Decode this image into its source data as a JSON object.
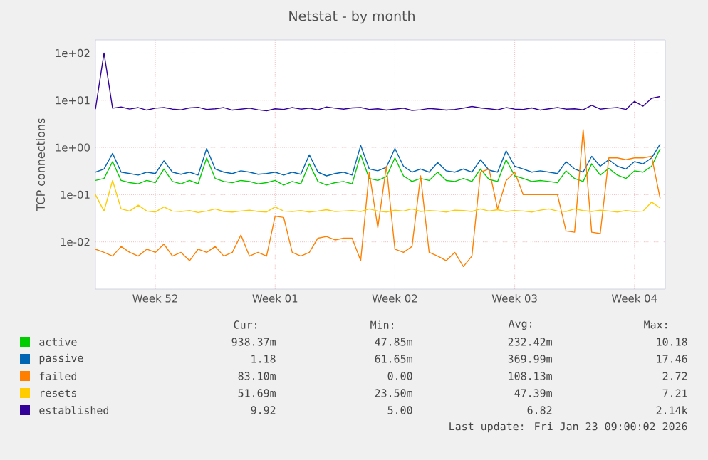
{
  "chart_data": {
    "type": "line",
    "title": "Netstat - by month",
    "ylabel": "TCP connections",
    "log": "y",
    "grid": true,
    "legend": "bottom",
    "marker": "none",
    "line_style": "solid",
    "categories": [
      null,
      null,
      null,
      null,
      null,
      null,
      null,
      "Week 52",
      null,
      null,
      null,
      null,
      null,
      null,
      null,
      null,
      null,
      null,
      null,
      null,
      null,
      "Week 01",
      null,
      null,
      null,
      null,
      null,
      null,
      null,
      null,
      null,
      null,
      null,
      null,
      null,
      "Week 02",
      null,
      null,
      null,
      null,
      null,
      null,
      null,
      null,
      null,
      null,
      null,
      null,
      null,
      "Week 03",
      null,
      null,
      null,
      null,
      null,
      null,
      null,
      null,
      null,
      null,
      null,
      null,
      null,
      "Week 04",
      null,
      null,
      null
    ],
    "ylim": [
      0.001,
      190
    ],
    "yticks": [
      {
        "value": 0.01,
        "label": "1e-02"
      },
      {
        "value": 0.1,
        "label": "1e-01"
      },
      {
        "value": 1,
        "label": "1e+00"
      },
      {
        "value": 10,
        "label": "1e+01"
      },
      {
        "value": 100,
        "label": "1e+02"
      }
    ],
    "series": [
      {
        "name": "active",
        "color": "#00cc00",
        "values": [
          0.2,
          0.22,
          0.5,
          0.2,
          0.18,
          0.17,
          0.2,
          0.18,
          0.35,
          0.19,
          0.17,
          0.2,
          0.17,
          0.6,
          0.22,
          0.19,
          0.18,
          0.2,
          0.19,
          0.17,
          0.18,
          0.2,
          0.16,
          0.19,
          0.17,
          0.45,
          0.19,
          0.16,
          0.18,
          0.19,
          0.17,
          0.7,
          0.22,
          0.2,
          0.24,
          0.6,
          0.25,
          0.19,
          0.22,
          0.2,
          0.3,
          0.2,
          0.19,
          0.22,
          0.19,
          0.35,
          0.21,
          0.19,
          0.55,
          0.25,
          0.22,
          0.19,
          0.2,
          0.19,
          0.18,
          0.32,
          0.22,
          0.19,
          0.45,
          0.26,
          0.36,
          0.26,
          0.22,
          0.32,
          0.3,
          0.4,
          0.94
        ]
      },
      {
        "name": "passive",
        "color": "#0066b3",
        "values": [
          0.3,
          0.35,
          0.75,
          0.3,
          0.28,
          0.26,
          0.3,
          0.28,
          0.52,
          0.3,
          0.27,
          0.3,
          0.26,
          0.95,
          0.35,
          0.3,
          0.28,
          0.32,
          0.3,
          0.27,
          0.28,
          0.3,
          0.26,
          0.3,
          0.27,
          0.7,
          0.3,
          0.25,
          0.28,
          0.3,
          0.26,
          1.1,
          0.35,
          0.32,
          0.38,
          0.95,
          0.4,
          0.3,
          0.35,
          0.3,
          0.48,
          0.32,
          0.3,
          0.35,
          0.3,
          0.55,
          0.33,
          0.3,
          0.85,
          0.4,
          0.35,
          0.3,
          0.32,
          0.3,
          0.28,
          0.5,
          0.35,
          0.3,
          0.65,
          0.4,
          0.55,
          0.4,
          0.35,
          0.5,
          0.45,
          0.6,
          1.18
        ]
      },
      {
        "name": "failed",
        "color": "#ff8000",
        "values": [
          0.007,
          0.006,
          0.005,
          0.008,
          0.006,
          0.005,
          0.007,
          0.006,
          0.009,
          0.005,
          0.006,
          0.004,
          0.007,
          0.006,
          0.008,
          0.005,
          0.006,
          0.014,
          0.005,
          0.006,
          0.005,
          0.035,
          0.033,
          0.006,
          0.005,
          0.006,
          0.012,
          0.013,
          0.011,
          0.012,
          0.012,
          0.004,
          0.3,
          0.02,
          0.4,
          0.007,
          0.006,
          0.008,
          0.25,
          0.006,
          0.005,
          0.004,
          0.006,
          0.003,
          0.005,
          0.3,
          0.35,
          0.05,
          0.2,
          0.3,
          0.1,
          0.1,
          0.1,
          0.1,
          0.1,
          0.017,
          0.016,
          2.4,
          0.016,
          0.015,
          0.6,
          0.6,
          0.55,
          0.6,
          0.6,
          0.65,
          0.083
        ]
      },
      {
        "name": "resets",
        "color": "#ffcc00",
        "values": [
          0.1,
          0.045,
          0.2,
          0.05,
          0.045,
          0.06,
          0.045,
          0.043,
          0.055,
          0.045,
          0.044,
          0.046,
          0.042,
          0.045,
          0.05,
          0.044,
          0.043,
          0.045,
          0.047,
          0.044,
          0.043,
          0.055,
          0.045,
          0.044,
          0.046,
          0.043,
          0.045,
          0.048,
          0.044,
          0.045,
          0.046,
          0.044,
          0.05,
          0.045,
          0.043,
          0.047,
          0.045,
          0.05,
          0.044,
          0.046,
          0.045,
          0.043,
          0.047,
          0.046,
          0.044,
          0.05,
          0.045,
          0.048,
          0.044,
          0.046,
          0.045,
          0.043,
          0.047,
          0.05,
          0.045,
          0.044,
          0.05,
          0.046,
          0.044,
          0.047,
          0.045,
          0.043,
          0.046,
          0.044,
          0.045,
          0.07,
          0.052
        ]
      },
      {
        "name": "established",
        "color": "#330099",
        "values": [
          6.5,
          100,
          6.8,
          7.2,
          6.5,
          7.0,
          6.2,
          6.8,
          7.0,
          6.5,
          6.3,
          6.9,
          7.1,
          6.4,
          6.6,
          7.0,
          6.2,
          6.5,
          6.8,
          6.3,
          6.0,
          6.6,
          6.4,
          7.0,
          6.5,
          6.8,
          6.3,
          7.2,
          6.8,
          6.5,
          6.9,
          7.0,
          6.4,
          6.6,
          6.2,
          6.5,
          6.8,
          6.1,
          6.3,
          6.7,
          6.5,
          6.2,
          6.4,
          6.8,
          7.4,
          6.9,
          6.6,
          6.3,
          7.0,
          6.5,
          6.4,
          6.9,
          6.2,
          6.6,
          7.0,
          6.5,
          6.6,
          6.3,
          7.8,
          6.5,
          6.8,
          7.0,
          6.4,
          9.5,
          7.5,
          11,
          12
        ]
      }
    ],
    "annotations": [
      "Cur:",
      "Min:",
      "Avg:",
      "Max:",
      "938.37m",
      "47.85m",
      "232.42m",
      "10.18",
      "1.18",
      "61.65m",
      "369.99m",
      "17.46",
      "83.10m",
      "0.00",
      "108.13m",
      "2.72",
      "51.69m",
      "23.50m",
      "47.39m",
      "7.21",
      "9.92",
      "5.00",
      "6.82",
      "2.14k",
      "Last update: Fri Jan 23 09:00:02 2026"
    ]
  }
}
